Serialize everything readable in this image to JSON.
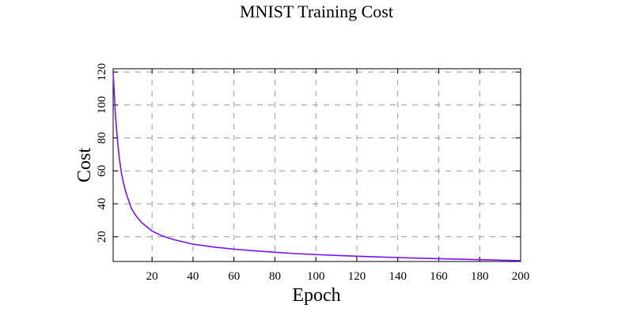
{
  "chart_data": {
    "type": "line",
    "title": "MNIST Training Cost",
    "xlabel": "Epoch",
    "ylabel": "Cost",
    "xlim": [
      1,
      200
    ],
    "ylim": [
      5,
      122
    ],
    "xticks": [
      20,
      40,
      60,
      80,
      100,
      120,
      140,
      160,
      180,
      200
    ],
    "yticks": [
      20,
      40,
      60,
      80,
      100,
      120
    ],
    "grid": true,
    "line_color": "#7b0fff",
    "series": [
      {
        "x": [
          1,
          2,
          3,
          4,
          5,
          6,
          7,
          8,
          10,
          12,
          15,
          20,
          25,
          30,
          40,
          50,
          60,
          70,
          80,
          90,
          100,
          110,
          120,
          130,
          140,
          150,
          160,
          170,
          180,
          190,
          200
        ],
        "values": [
          120,
          96,
          80,
          68,
          59,
          53,
          48,
          44,
          37,
          33,
          28.5,
          23.5,
          20.5,
          18.5,
          15.5,
          13.8,
          12.5,
          11.5,
          10.6,
          9.8,
          9.2,
          8.7,
          8.2,
          7.8,
          7.4,
          7.0,
          6.7,
          6.4,
          6.1,
          5.8,
          5.5
        ]
      }
    ]
  }
}
